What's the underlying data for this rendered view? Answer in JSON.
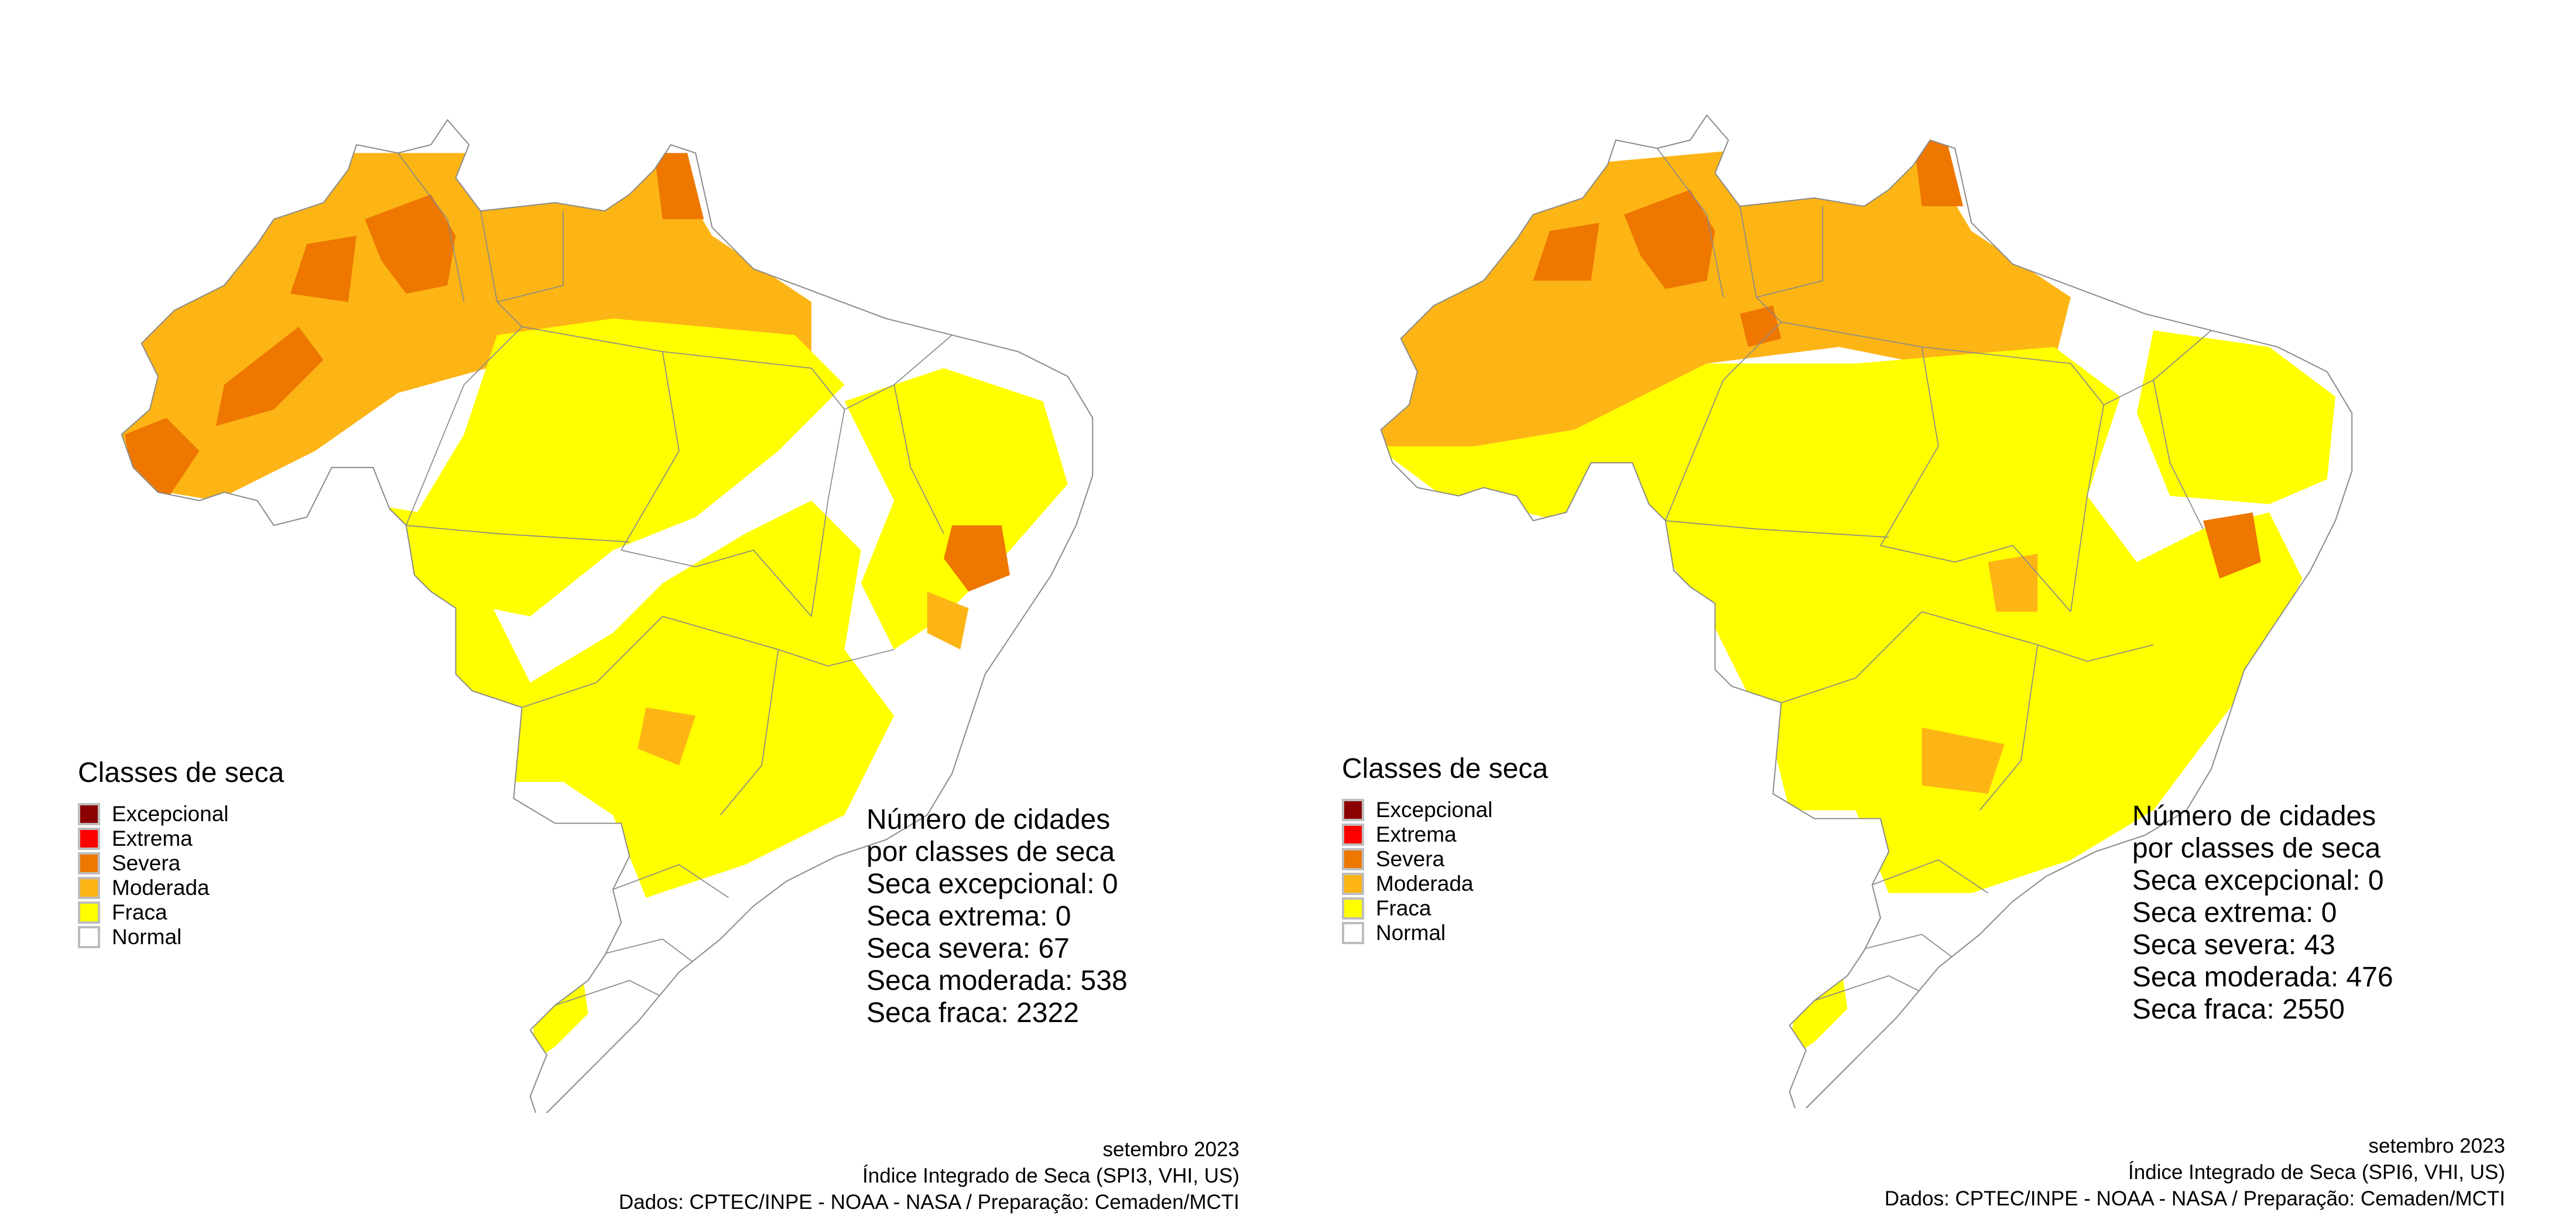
{
  "legend": {
    "title": "Classes de seca",
    "items": [
      {
        "label": "Excepcional",
        "color": "#8B0000"
      },
      {
        "label": "Extrema",
        "color": "#FF0000"
      },
      {
        "label": "Severa",
        "color": "#EE7700"
      },
      {
        "label": "Moderada",
        "color": "#FDB515"
      },
      {
        "label": "Fraca",
        "color": "#FFFF00"
      },
      {
        "label": "Normal",
        "color": "#FFFFFF"
      }
    ]
  },
  "panels": [
    {
      "stats": {
        "heading_1": "Número de cidades",
        "heading_2": "por classes de seca",
        "lines": [
          "Seca excepcional: 0",
          "Seca extrema: 0",
          "Seca severa: 67",
          "Seca moderada: 538",
          "Seca fraca: 2322"
        ]
      },
      "footer": {
        "date": "setembro 2023",
        "index": "Índice Integrado de Seca (SPI3, VHI, US)",
        "source": "Dados: CPTEC/INPE - NOAA - NASA / Preparação: Cemaden/MCTI"
      }
    },
    {
      "stats": {
        "heading_1": "Número de cidades",
        "heading_2": "por classes de seca",
        "lines": [
          "Seca excepcional: 0",
          "Seca extrema: 0",
          "Seca severa: 43",
          "Seca moderada: 476",
          "Seca fraca: 2550"
        ]
      },
      "footer": {
        "date": "setembro 2023",
        "index": "Índice Integrado de Seca (SPI6, VHI, US)",
        "source": "Dados: CPTEC/INPE - NOAA - NASA / Preparação: Cemaden/MCTI"
      }
    }
  ]
}
